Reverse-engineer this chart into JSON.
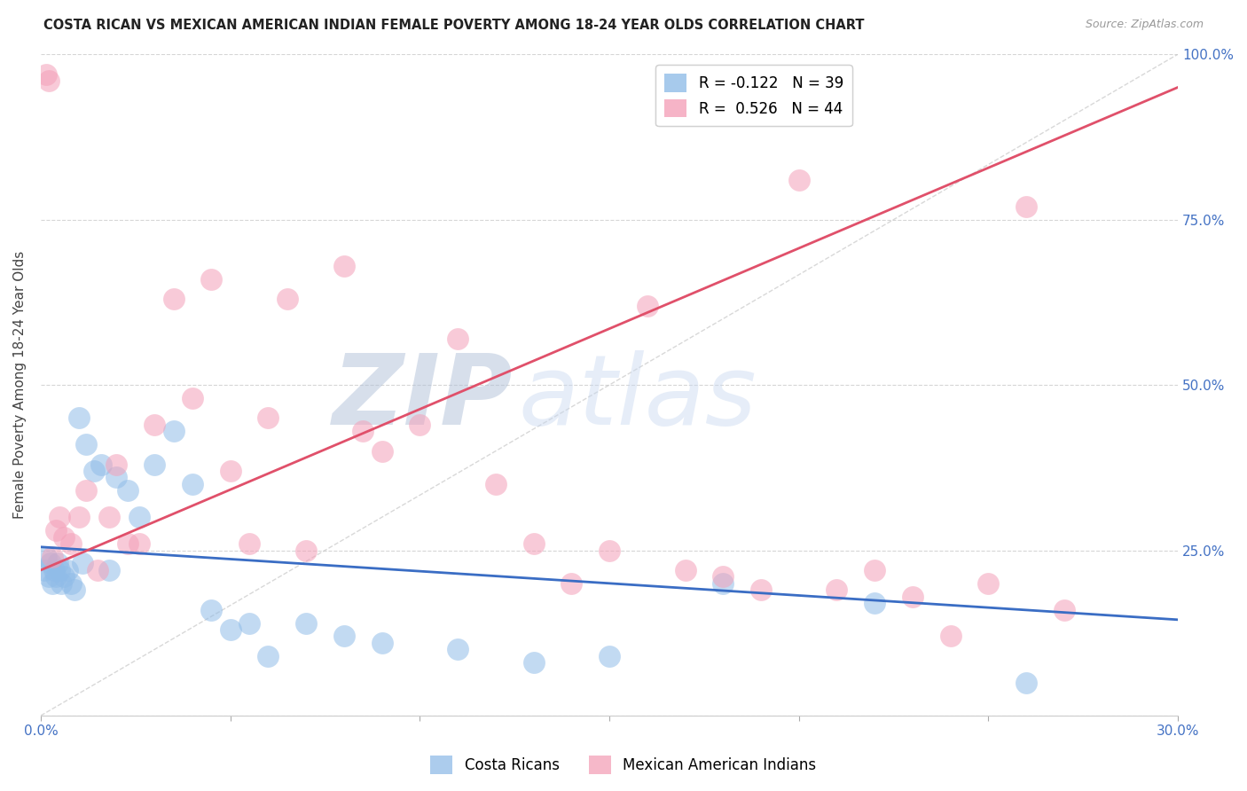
{
  "title": "COSTA RICAN VS MEXICAN AMERICAN INDIAN FEMALE POVERTY AMONG 18-24 YEAR OLDS CORRELATION CHART",
  "source": "Source: ZipAtlas.com",
  "ylabel": "Female Poverty Among 18-24 Year Olds",
  "xlim": [
    0,
    30
  ],
  "ylim": [
    0,
    100
  ],
  "legend_labels": [
    "Costa Ricans",
    "Mexican American Indians"
  ],
  "blue_R": -0.122,
  "blue_N": 39,
  "pink_R": 0.526,
  "pink_N": 44,
  "blue_color": "#90bce8",
  "pink_color": "#f4a0b8",
  "blue_line_color": "#3a6dc4",
  "pink_line_color": "#e0506a",
  "watermark_zip": "ZIP",
  "watermark_atlas": "atlas",
  "blue_scatter_x": [
    0.1,
    0.15,
    0.2,
    0.25,
    0.3,
    0.35,
    0.4,
    0.45,
    0.5,
    0.55,
    0.6,
    0.7,
    0.8,
    0.9,
    1.0,
    1.1,
    1.2,
    1.4,
    1.6,
    1.8,
    2.0,
    2.3,
    2.6,
    3.0,
    3.5,
    4.0,
    4.5,
    5.0,
    5.5,
    6.0,
    7.0,
    8.0,
    9.0,
    11.0,
    13.0,
    15.0,
    18.0,
    22.0,
    26.0
  ],
  "blue_scatter_y": [
    22,
    24,
    21,
    23,
    20,
    22,
    21,
    23,
    22,
    20,
    21,
    22,
    20,
    19,
    45,
    23,
    41,
    37,
    38,
    22,
    36,
    34,
    30,
    38,
    43,
    35,
    16,
    13,
    14,
    9,
    14,
    12,
    11,
    10,
    8,
    9,
    20,
    17,
    5
  ],
  "pink_scatter_x": [
    0.15,
    0.2,
    0.3,
    0.4,
    0.5,
    0.6,
    0.8,
    1.0,
    1.2,
    1.5,
    1.8,
    2.0,
    2.3,
    2.6,
    3.0,
    3.5,
    4.0,
    4.5,
    5.0,
    5.5,
    6.0,
    6.5,
    7.0,
    8.0,
    8.5,
    9.0,
    10.0,
    11.0,
    12.0,
    13.0,
    14.0,
    15.0,
    16.0,
    17.0,
    18.0,
    19.0,
    20.0,
    21.0,
    22.0,
    23.0,
    24.0,
    25.0,
    26.0,
    27.0
  ],
  "pink_scatter_y": [
    97,
    96,
    24,
    28,
    30,
    27,
    26,
    30,
    34,
    22,
    30,
    38,
    26,
    26,
    44,
    63,
    48,
    66,
    37,
    26,
    45,
    63,
    25,
    68,
    43,
    40,
    44,
    57,
    35,
    26,
    20,
    25,
    62,
    22,
    21,
    19,
    81,
    19,
    22,
    18,
    12,
    20,
    77,
    16
  ],
  "blue_line_x0": 0,
  "blue_line_x1": 30,
  "blue_line_y0": 25.5,
  "blue_line_y1": 14.5,
  "pink_line_x0": 0,
  "pink_line_x1": 30,
  "pink_line_y0": 22.0,
  "pink_line_y1": 95.0
}
